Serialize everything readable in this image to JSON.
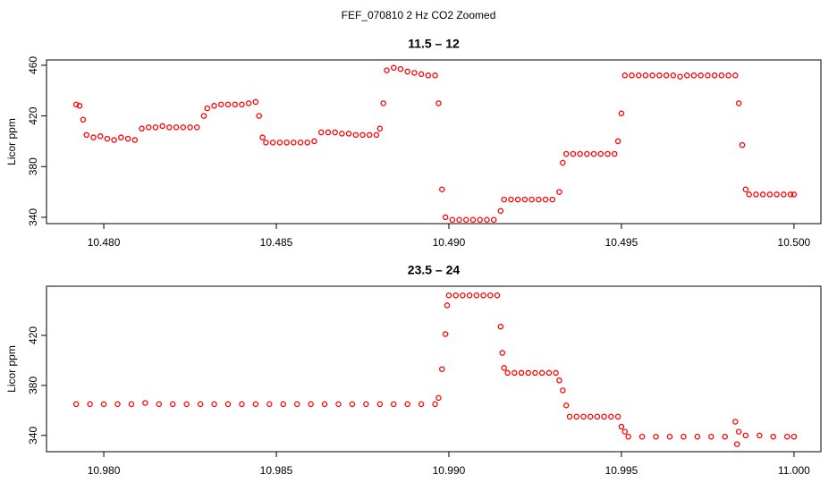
{
  "title": "FEF_070810  2 Hz CO2 Zoomed",
  "chart_data": [
    {
      "type": "scatter",
      "title": "11.5 – 12",
      "ylabel": "Licor ppm",
      "color": "#ff0000",
      "xlim": [
        10.47834,
        10.50078
      ],
      "ylim": [
        335,
        464.2
      ],
      "xticks": [
        {
          "value": 10.48,
          "label": "10.480"
        },
        {
          "value": 10.485,
          "label": "10.485"
        },
        {
          "value": 10.49,
          "label": "10.490"
        },
        {
          "value": 10.495,
          "label": "10.495"
        },
        {
          "value": 10.5,
          "label": "10.500"
        }
      ],
      "yticks": [
        340,
        380,
        420,
        460
      ],
      "x": [
        10.4792,
        10.4793,
        10.4794,
        10.4795,
        10.4797,
        10.4799,
        10.4801,
        10.4803,
        10.4805,
        10.4807,
        10.4809,
        10.4811,
        10.4813,
        10.4815,
        10.4817,
        10.4819,
        10.4821,
        10.4823,
        10.4825,
        10.4827,
        10.4829,
        10.483,
        10.4832,
        10.4834,
        10.4836,
        10.4838,
        10.484,
        10.4842,
        10.4844,
        10.4845,
        10.4846,
        10.4847,
        10.4849,
        10.4851,
        10.4853,
        10.4855,
        10.4857,
        10.4859,
        10.4861,
        10.4863,
        10.4865,
        10.4867,
        10.4869,
        10.4871,
        10.4873,
        10.4875,
        10.4877,
        10.4879,
        10.488,
        10.4881,
        10.4882,
        10.4884,
        10.4886,
        10.4888,
        10.489,
        10.4892,
        10.4894,
        10.4896,
        10.4897,
        10.4898,
        10.4899,
        10.4901,
        10.4903,
        10.4905,
        10.4907,
        10.4909,
        10.4911,
        10.4913,
        10.4915,
        10.4916,
        10.4918,
        10.492,
        10.4922,
        10.4924,
        10.4926,
        10.4928,
        10.493,
        10.4932,
        10.4933,
        10.4934,
        10.4936,
        10.4938,
        10.494,
        10.4942,
        10.4944,
        10.4946,
        10.4948,
        10.4949,
        10.495,
        10.4951,
        10.4953,
        10.4955,
        10.4957,
        10.4959,
        10.4961,
        10.4963,
        10.4965,
        10.4967,
        10.4969,
        10.4971,
        10.4973,
        10.4975,
        10.4977,
        10.4979,
        10.4981,
        10.4983,
        10.4984,
        10.4985,
        10.4986,
        10.4987,
        10.4989,
        10.4991,
        10.4993,
        10.4995,
        10.4997,
        10.4999,
        10.5
      ],
      "y": [
        429,
        428,
        417,
        405,
        403,
        404,
        402,
        401,
        403,
        402,
        401,
        410,
        411,
        411,
        412,
        411,
        411,
        411,
        411,
        411,
        420,
        426,
        428,
        429,
        429,
        429,
        429,
        430,
        431,
        420,
        403,
        399,
        399,
        399,
        399,
        399,
        399,
        399,
        400,
        407,
        407,
        407,
        406,
        406,
        405,
        405,
        405,
        405,
        410,
        430,
        456,
        458,
        457,
        455,
        454,
        453,
        452,
        452,
        430,
        362,
        340,
        338,
        338,
        338,
        338,
        338,
        338,
        338,
        345,
        354,
        354,
        354,
        354,
        354,
        354,
        354,
        354,
        360,
        383,
        390,
        390,
        390,
        390,
        390,
        390,
        390,
        390,
        400,
        422,
        452,
        452,
        452,
        452,
        452,
        452,
        452,
        452,
        451,
        452,
        452,
        452,
        452,
        452,
        452,
        452,
        452,
        430,
        397,
        362,
        358,
        358,
        358,
        358,
        358,
        358,
        358,
        358
      ]
    },
    {
      "type": "scatter",
      "title": "23.5 – 24",
      "ylabel": "Licor ppm",
      "color": "#ff0000",
      "xlim": [
        10.97834,
        11.00078
      ],
      "ylim": [
        327,
        459.3
      ],
      "xticks": [
        {
          "value": 10.98,
          "label": "10.980"
        },
        {
          "value": 10.985,
          "label": "10.985"
        },
        {
          "value": 10.99,
          "label": "10.990"
        },
        {
          "value": 10.995,
          "label": "10.995"
        },
        {
          "value": 11,
          "label": "11.000"
        }
      ],
      "yticks": [
        340,
        380,
        420
      ],
      "x": [
        10.9792,
        10.9796,
        10.98,
        10.9804,
        10.9808,
        10.9812,
        10.9816,
        10.982,
        10.9824,
        10.9828,
        10.9832,
        10.9836,
        10.984,
        10.9844,
        10.9848,
        10.9852,
        10.9856,
        10.986,
        10.9864,
        10.9868,
        10.9872,
        10.9876,
        10.988,
        10.9884,
        10.9888,
        10.9892,
        10.9896,
        10.9897,
        10.9898,
        10.9899,
        10.98995,
        10.99,
        10.9902,
        10.9904,
        10.9906,
        10.9908,
        10.991,
        10.9912,
        10.9914,
        10.9915,
        10.99155,
        10.9916,
        10.9917,
        10.9919,
        10.9921,
        10.9923,
        10.9925,
        10.9927,
        10.9929,
        10.9931,
        10.9932,
        10.9933,
        10.9934,
        10.9935,
        10.9937,
        10.9939,
        10.9941,
        10.9943,
        10.9945,
        10.9947,
        10.9949,
        10.995,
        10.9951,
        10.9952,
        10.9956,
        10.996,
        10.9964,
        10.9968,
        10.9972,
        10.9976,
        10.998,
        10.9983,
        10.99835,
        10.9984,
        10.9986,
        10.999,
        10.9994,
        10.9998,
        11
      ],
      "y": [
        365,
        365,
        365,
        365,
        365,
        366,
        365,
        365,
        365,
        365,
        365,
        365,
        365,
        365,
        365,
        365,
        365,
        365,
        365,
        365,
        365,
        365,
        365,
        365,
        365,
        365,
        365,
        370,
        393,
        421,
        444,
        452,
        452,
        452,
        452,
        452,
        452,
        452,
        452,
        427,
        406,
        394,
        390,
        390,
        390,
        390,
        390,
        390,
        390,
        390,
        384,
        376,
        364,
        355,
        355,
        355,
        355,
        355,
        355,
        355,
        355,
        347,
        343,
        339,
        339,
        339,
        339,
        339,
        339,
        339,
        339,
        351,
        333,
        343,
        340,
        340,
        339,
        339,
        339
      ]
    }
  ]
}
